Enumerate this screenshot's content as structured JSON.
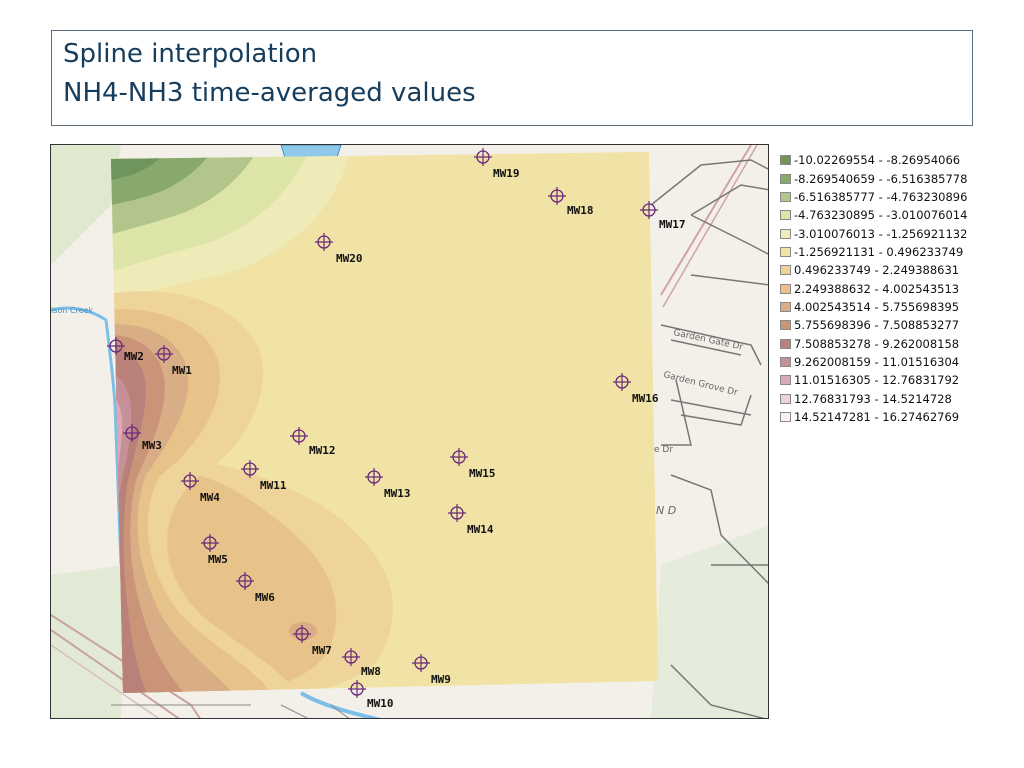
{
  "title": {
    "line1": "Spline interpolation",
    "line2": "NH4-NH3 time-averaged values"
  },
  "map": {
    "street_labels": [
      "Garden Gate Dr",
      "Garden Grove Dr",
      "e Dr",
      "N D",
      "ison Creek"
    ],
    "wells": [
      {
        "id": "MW1",
        "label": "MW1"
      },
      {
        "id": "MW2",
        "label": "MW2"
      },
      {
        "id": "MW3",
        "label": "MW3"
      },
      {
        "id": "MW4",
        "label": "MW4"
      },
      {
        "id": "MW5",
        "label": "MW5"
      },
      {
        "id": "MW6",
        "label": "MW6"
      },
      {
        "id": "MW7",
        "label": "MW7"
      },
      {
        "id": "MW8",
        "label": "MW8"
      },
      {
        "id": "MW9",
        "label": "MW9"
      },
      {
        "id": "MW10",
        "label": "MW10"
      },
      {
        "id": "MW11",
        "label": "MW11"
      },
      {
        "id": "MW12",
        "label": "MW12"
      },
      {
        "id": "MW13",
        "label": "MW13"
      },
      {
        "id": "MW14",
        "label": "MW14"
      },
      {
        "id": "MW15",
        "label": "MW15"
      },
      {
        "id": "MW16",
        "label": "MW16"
      },
      {
        "id": "MW17",
        "label": "MW17"
      },
      {
        "id": "MW18",
        "label": "MW18"
      },
      {
        "id": "MW19",
        "label": "MW19"
      },
      {
        "id": "MW20",
        "label": "MW20"
      }
    ],
    "marker_color": "#6a2a7a"
  },
  "legend": [
    {
      "label": "-10.02269554 - -8.26954066",
      "color": "#6f955c"
    },
    {
      "label": "-8.269540659 - -6.516385778",
      "color": "#89a86c"
    },
    {
      "label": "-6.516385777 - -4.763230896",
      "color": "#b2c68c"
    },
    {
      "label": "-4.763230895 - -3.010076014",
      "color": "#dce4a8"
    },
    {
      "label": "-3.010076013 - -1.256921132",
      "color": "#eeebb8"
    },
    {
      "label": "-1.256921131 - 0.496233749",
      "color": "#f1e2a5"
    },
    {
      "label": "0.496233749 - 2.249388631",
      "color": "#eed39a"
    },
    {
      "label": "2.249388632 - 4.002543513",
      "color": "#e8c389"
    },
    {
      "label": "4.002543514 - 5.755698395",
      "color": "#d9ad86"
    },
    {
      "label": "5.755698396 - 7.508853277",
      "color": "#c99478"
    },
    {
      "label": "7.508853278 - 9.262008158",
      "color": "#b8827a"
    },
    {
      "label": "9.262008159 - 11.01516304",
      "color": "#c59098"
    },
    {
      "label": "11.01516305 - 12.76831792",
      "color": "#dcaab6"
    },
    {
      "label": "12.76831793 - 14.5214728",
      "color": "#ecd0dc"
    },
    {
      "label": "14.52147281 - 16.27462769",
      "color": "#fbf0f6"
    }
  ]
}
